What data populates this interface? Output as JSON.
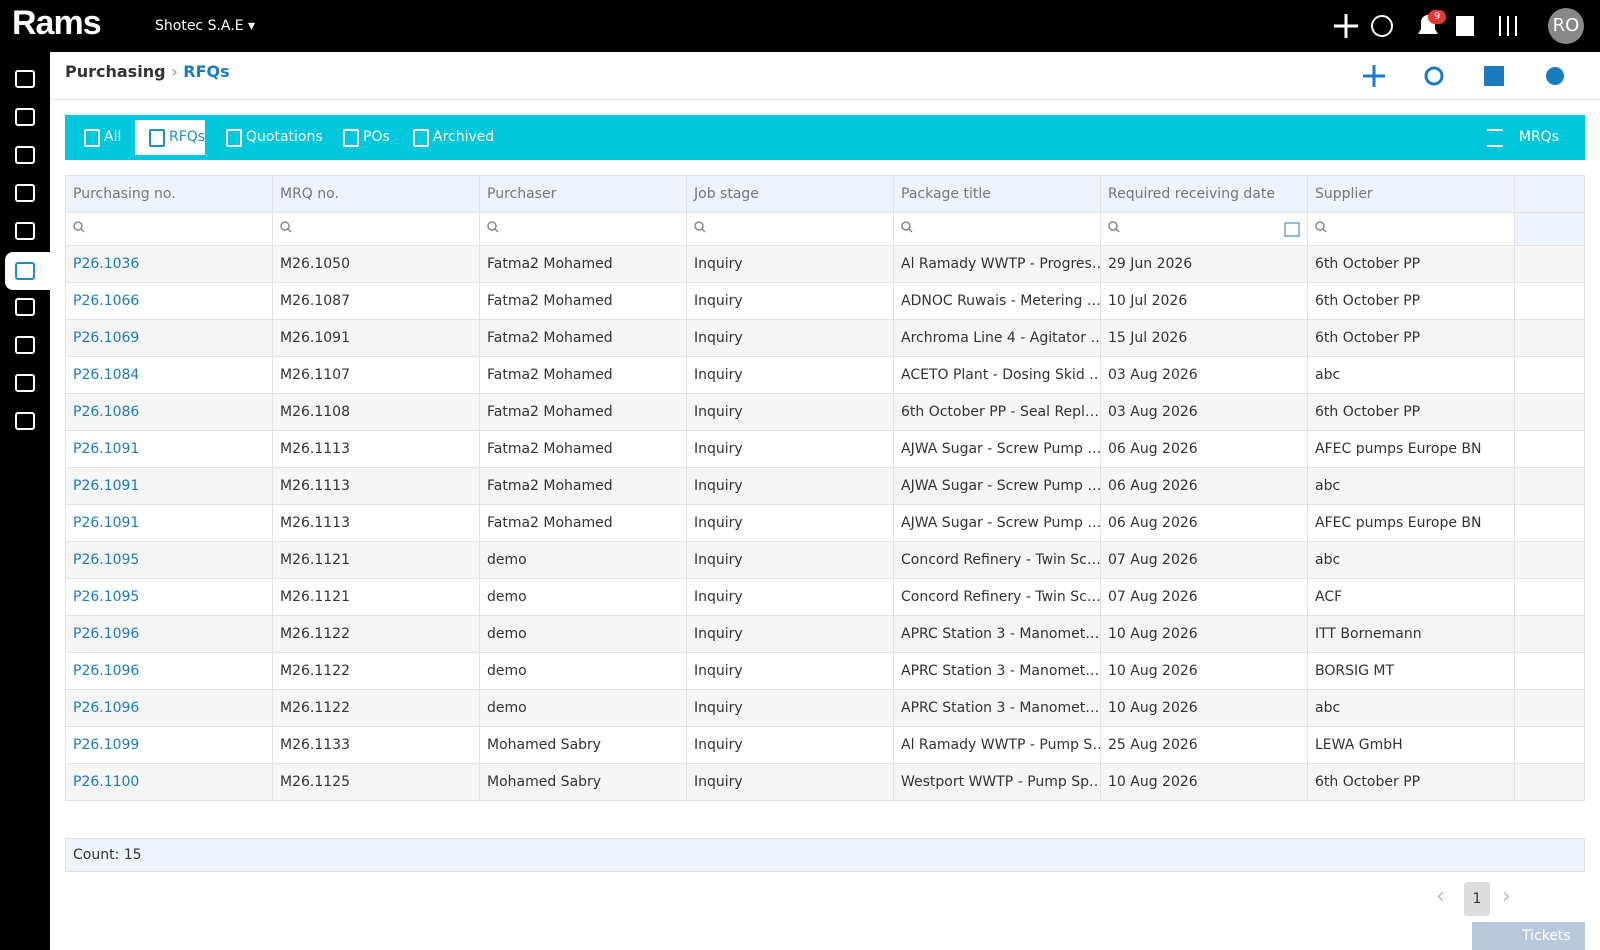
{
  "topbar": {
    "logo": "Rams",
    "company": "Shotec S.A.E",
    "notification_count": "9",
    "avatar": "RO"
  },
  "breadcrumb": {
    "parent": "Purchasing",
    "current": "RFQs"
  },
  "tabs": [
    "All",
    "RFQs",
    "Quotations",
    "POs",
    "Archived"
  ],
  "tab_right": "MRQs",
  "table": {
    "columns": [
      "Purchasing no.",
      "MRQ no.",
      "Purchaser",
      "Job stage",
      "Package title",
      "Required receiving date",
      "Supplier"
    ],
    "rows": [
      [
        "P26.1036",
        "M26.1050",
        "Fatma2 Mohamed",
        "Inquiry",
        "Al Ramady WWTP - Progres…",
        "29 Jun 2026",
        "6th October PP"
      ],
      [
        "P26.1066",
        "M26.1087",
        "Fatma2 Mohamed",
        "Inquiry",
        "ADNOC Ruwais - Metering …",
        "10 Jul 2026",
        "6th October PP"
      ],
      [
        "P26.1069",
        "M26.1091",
        "Fatma2 Mohamed",
        "Inquiry",
        "Archroma Line 4 - Agitator …",
        "15 Jul 2026",
        "6th October PP"
      ],
      [
        "P26.1084",
        "M26.1107",
        "Fatma2 Mohamed",
        "Inquiry",
        "ACETO Plant - Dosing Skid …",
        "03 Aug 2026",
        "abc"
      ],
      [
        "P26.1086",
        "M26.1108",
        "Fatma2 Mohamed",
        "Inquiry",
        "6th October PP - Seal Repl…",
        "03 Aug 2026",
        "6th October PP"
      ],
      [
        "P26.1091",
        "M26.1113",
        "Fatma2 Mohamed",
        "Inquiry",
        "AJWA Sugar - Screw Pump …",
        "06 Aug 2026",
        "AFEC pumps Europe BN"
      ],
      [
        "P26.1091",
        "M26.1113",
        "Fatma2 Mohamed",
        "Inquiry",
        "AJWA Sugar - Screw Pump …",
        "06 Aug 2026",
        "abc"
      ],
      [
        "P26.1091",
        "M26.1113",
        "Fatma2 Mohamed",
        "Inquiry",
        "AJWA Sugar - Screw Pump …",
        "06 Aug 2026",
        "AFEC pumps Europe BN"
      ],
      [
        "P26.1095",
        "M26.1121",
        "demo",
        "Inquiry",
        "Concord Refinery - Twin Sc…",
        "07 Aug 2026",
        "abc"
      ],
      [
        "P26.1095",
        "M26.1121",
        "demo",
        "Inquiry",
        "Concord Refinery - Twin Sc…",
        "07 Aug 2026",
        "ACF"
      ],
      [
        "P26.1096",
        "M26.1122",
        "demo",
        "Inquiry",
        "APRC Station 3 - Manomet…",
        "10 Aug 2026",
        "ITT Bornemann"
      ],
      [
        "P26.1096",
        "M26.1122",
        "demo",
        "Inquiry",
        "APRC Station 3 - Manomet…",
        "10 Aug 2026",
        "BORSIG MT"
      ],
      [
        "P26.1096",
        "M26.1122",
        "demo",
        "Inquiry",
        "APRC Station 3 - Manomet…",
        "10 Aug 2026",
        "abc"
      ],
      [
        "P26.1099",
        "M26.1133",
        "Mohamed Sabry",
        "Inquiry",
        "Al Ramady WWTP - Pump S…",
        "25 Aug 2026",
        "LEWA GmbH"
      ],
      [
        "P26.1100",
        "M26.1125",
        "Mohamed Sabry",
        "Inquiry",
        "Westport WWTP - Pump Sp…",
        "10 Aug 2026",
        "6th October PP"
      ]
    ]
  },
  "footer": {
    "count": "Count: 15",
    "page": "1",
    "tickets": "Tickets"
  }
}
